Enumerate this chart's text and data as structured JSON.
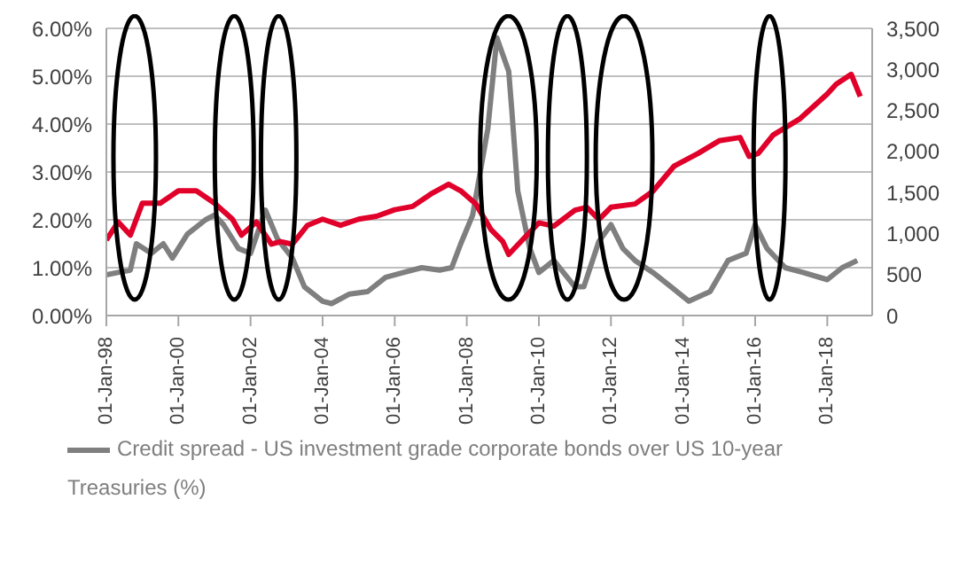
{
  "chart_data": {
    "type": "line",
    "x": [
      "1998-01",
      "1998-05",
      "1998-09",
      "1998-11",
      "1999-04",
      "1999-08",
      "1999-11",
      "2000-04",
      "2000-10",
      "2001-01",
      "2001-04",
      "2001-09",
      "2002-01",
      "2002-06",
      "2002-10",
      "2003-03",
      "2003-07",
      "2004-01",
      "2004-04",
      "2004-10",
      "2005-04",
      "2005-10",
      "2006-04",
      "2006-10",
      "2007-04",
      "2007-08",
      "2007-11",
      "2008-03",
      "2008-08",
      "2008-11",
      "2009-03",
      "2009-04",
      "2009-06",
      "2009-10",
      "2010-01",
      "2010-06",
      "2011-01",
      "2011-04",
      "2011-09",
      "2012-01",
      "2012-05",
      "2012-09",
      "2013-03",
      "2013-09",
      "2014-03",
      "2014-10",
      "2015-04",
      "2015-10",
      "2016-01",
      "2016-05",
      "2016-11",
      "2017-05",
      "2018-01",
      "2018-06",
      "2018-11"
    ],
    "series": [
      {
        "name": "Credit spread - US investment grade corporate bonds over US 10-year Treasuries (%)",
        "color": "#7f7f7f",
        "values": [
          0.85,
          0.9,
          0.95,
          1.5,
          1.3,
          1.5,
          1.2,
          1.7,
          2.0,
          2.1,
          1.9,
          1.4,
          1.3,
          2.2,
          1.6,
          1.2,
          0.6,
          0.3,
          0.25,
          0.45,
          0.5,
          0.8,
          0.9,
          1.0,
          0.95,
          1.0,
          1.5,
          2.1,
          3.9,
          5.8,
          5.1,
          4.3,
          2.6,
          1.4,
          0.9,
          1.15,
          0.6,
          0.6,
          1.55,
          1.9,
          1.4,
          1.15,
          0.9,
          0.6,
          0.3,
          0.5,
          1.15,
          1.3,
          1.9,
          1.4,
          1.0,
          0.9,
          0.75,
          1.0,
          1.15
        ]
      },
      {
        "axis": "y2",
        "color": "#e0002a",
        "x": [
          "1998-01",
          "1998-05",
          "1998-09",
          "1999-01",
          "1999-07",
          "2000-01",
          "2000-07",
          "2001-01",
          "2001-07",
          "2001-10",
          "2002-03",
          "2002-08",
          "2002-11",
          "2003-03",
          "2003-08",
          "2004-01",
          "2004-07",
          "2005-01",
          "2005-07",
          "2006-01",
          "2006-07",
          "2007-01",
          "2007-07",
          "2007-11",
          "2008-04",
          "2008-09",
          "2009-01",
          "2009-03",
          "2009-08",
          "2010-01",
          "2010-06",
          "2011-01",
          "2011-05",
          "2011-09",
          "2012-01",
          "2012-09",
          "2013-03",
          "2013-10",
          "2014-06",
          "2015-01",
          "2015-08",
          "2015-11",
          "2016-02",
          "2016-07",
          "2017-04",
          "2018-01",
          "2018-04",
          "2018-09",
          "2018-12"
        ],
        "values": [
          920,
          1140,
          980,
          1370,
          1370,
          1520,
          1520,
          1370,
          1175,
          980,
          1140,
          870,
          900,
          870,
          1100,
          1175,
          1100,
          1175,
          1210,
          1290,
          1330,
          1480,
          1600,
          1520,
          1360,
          1050,
          900,
          745,
          940,
          1130,
          1090,
          1285,
          1320,
          1170,
          1320,
          1360,
          1515,
          1820,
          1975,
          2130,
          2170,
          1940,
          1975,
          2200,
          2400,
          2700,
          2820,
          2940,
          2670
        ]
      }
    ],
    "xlim": [
      "1998-01-01",
      "2019-04-01"
    ],
    "xticks": [
      {
        "value": "1998-01-01",
        "label": "01-Jan-98"
      },
      {
        "value": "2000-01-01",
        "label": "01-Jan-00"
      },
      {
        "value": "2002-01-01",
        "label": "01-Jan-02"
      },
      {
        "value": "2004-01-01",
        "label": "01-Jan-04"
      },
      {
        "value": "2006-01-01",
        "label": "01-Jan-06"
      },
      {
        "value": "2008-01-01",
        "label": "01-Jan-08"
      },
      {
        "value": "2010-01-01",
        "label": "01-Jan-10"
      },
      {
        "value": "2012-01-01",
        "label": "01-Jan-12"
      },
      {
        "value": "2014-01-01",
        "label": "01-Jan-14"
      },
      {
        "value": "2016-01-01",
        "label": "01-Jan-16"
      },
      {
        "value": "2018-01-01",
        "label": "01-Jan-18"
      }
    ],
    "ylim": [
      0,
      6
    ],
    "yticks": [
      {
        "value": 0,
        "label": "0.00%"
      },
      {
        "value": 1,
        "label": "1.00%"
      },
      {
        "value": 2,
        "label": "2.00%"
      },
      {
        "value": 3,
        "label": "3.00%"
      },
      {
        "value": 4,
        "label": "4.00%"
      },
      {
        "value": 5,
        "label": "5.00%"
      },
      {
        "value": 6,
        "label": "6.00%"
      }
    ],
    "y2lim": [
      0,
      3500
    ],
    "y2ticks": [
      0,
      {
        "value": 500,
        "label": "500"
      },
      {
        "value": 1000,
        "label": "1,000"
      },
      {
        "value": 1500,
        "label": "1,500"
      },
      {
        "value": 2000,
        "label": "2,000"
      },
      {
        "value": 2500,
        "label": "2,500"
      },
      {
        "value": 3000,
        "label": "3,000"
      },
      {
        "value": 3500,
        "label": "3,500"
      }
    ],
    "grid": "y",
    "legend": "bottom",
    "marker": "none",
    "line_style": "solid"
  }
}
